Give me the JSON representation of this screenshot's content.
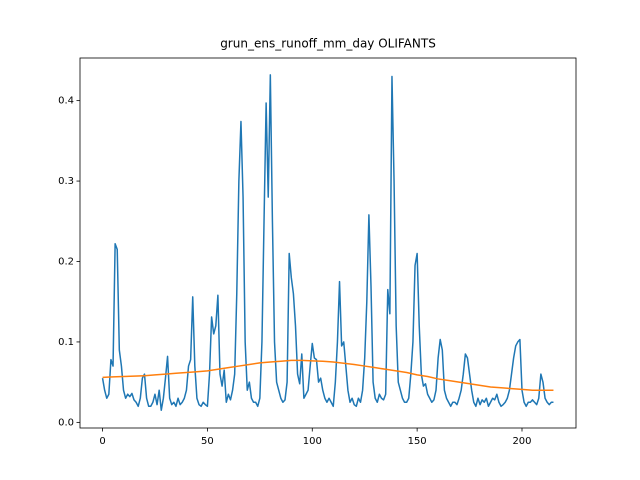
{
  "chart_data": {
    "type": "line",
    "title": "grun_ens_runoff_mm_day OLIFANTS",
    "xlim": [
      -10.75,
      225.75
    ],
    "xticks": [
      0,
      50,
      100,
      150,
      200
    ],
    "ylim": [
      -0.007,
      0.453
    ],
    "yticks": [
      {
        "value": 0,
        "label": "0.0"
      },
      0.1,
      0.2,
      0.3,
      0.4
    ],
    "series": [
      {
        "color": "#1f77b4",
        "values": [
          0.055,
          0.04,
          0.03,
          0.035,
          0.078,
          0.07,
          0.222,
          0.215,
          0.09,
          0.07,
          0.04,
          0.03,
          0.035,
          0.032,
          0.036,
          0.028,
          0.025,
          0.02,
          0.03,
          0.055,
          0.06,
          0.03,
          0.02,
          0.02,
          0.025,
          0.035,
          0.022,
          0.04,
          0.015,
          0.03,
          0.055,
          0.082,
          0.03,
          0.022,
          0.025,
          0.02,
          0.03,
          0.022,
          0.025,
          0.03,
          0.04,
          0.07,
          0.078,
          0.156,
          0.07,
          0.03,
          0.022,
          0.02,
          0.025,
          0.022,
          0.02,
          0.06,
          0.131,
          0.11,
          0.12,
          0.158,
          0.06,
          0.045,
          0.065,
          0.025,
          0.035,
          0.028,
          0.04,
          0.06,
          0.16,
          0.3,
          0.374,
          0.28,
          0.1,
          0.04,
          0.05,
          0.03,
          0.025,
          0.025,
          0.02,
          0.03,
          0.1,
          0.25,
          0.397,
          0.28,
          0.432,
          0.25,
          0.1,
          0.05,
          0.04,
          0.03,
          0.025,
          0.028,
          0.05,
          0.21,
          0.18,
          0.16,
          0.12,
          0.06,
          0.048,
          0.085,
          0.03,
          0.035,
          0.04,
          0.07,
          0.098,
          0.08,
          0.078,
          0.05,
          0.055,
          0.04,
          0.03,
          0.025,
          0.03,
          0.025,
          0.02,
          0.05,
          0.1,
          0.175,
          0.095,
          0.1,
          0.07,
          0.04,
          0.025,
          0.03,
          0.022,
          0.02,
          0.03,
          0.025,
          0.04,
          0.08,
          0.15,
          0.258,
          0.17,
          0.05,
          0.03,
          0.025,
          0.035,
          0.03,
          0.028,
          0.035,
          0.165,
          0.135,
          0.43,
          0.3,
          0.12,
          0.05,
          0.04,
          0.03,
          0.025,
          0.025,
          0.03,
          0.06,
          0.1,
          0.195,
          0.21,
          0.12,
          0.06,
          0.045,
          0.048,
          0.035,
          0.03,
          0.025,
          0.028,
          0.04,
          0.08,
          0.103,
          0.09,
          0.04,
          0.03,
          0.025,
          0.02,
          0.025,
          0.025,
          0.022,
          0.03,
          0.04,
          0.06,
          0.085,
          0.08,
          0.06,
          0.04,
          0.025,
          0.02,
          0.03,
          0.022,
          0.028,
          0.025,
          0.03,
          0.02,
          0.025,
          0.03,
          0.028,
          0.035,
          0.025,
          0.02,
          0.022,
          0.025,
          0.03,
          0.04,
          0.06,
          0.08,
          0.095,
          0.1,
          0.103,
          0.04,
          0.025,
          0.02,
          0.025,
          0.025,
          0.028,
          0.025,
          0.022,
          0.03,
          0.06,
          0.05,
          0.03,
          0.025,
          0.022,
          0.025,
          0.025
        ]
      },
      {
        "color": "#ff7f0e",
        "x": [
          0,
          5,
          10,
          15,
          20,
          25,
          30,
          35,
          40,
          45,
          50,
          55,
          60,
          65,
          70,
          75,
          80,
          85,
          90,
          95,
          100,
          105,
          110,
          115,
          120,
          125,
          130,
          135,
          140,
          145,
          150,
          155,
          160,
          165,
          170,
          175,
          180,
          185,
          190,
          195,
          200,
          205,
          210,
          215
        ],
        "values": [
          0.056,
          0.0565,
          0.057,
          0.0575,
          0.058,
          0.059,
          0.06,
          0.061,
          0.062,
          0.063,
          0.064,
          0.066,
          0.068,
          0.07,
          0.072,
          0.074,
          0.075,
          0.076,
          0.077,
          0.077,
          0.0765,
          0.076,
          0.075,
          0.0735,
          0.072,
          0.07,
          0.068,
          0.066,
          0.064,
          0.062,
          0.059,
          0.057,
          0.054,
          0.052,
          0.05,
          0.048,
          0.046,
          0.044,
          0.043,
          0.042,
          0.041,
          0.04,
          0.04,
          0.04
        ]
      }
    ]
  }
}
